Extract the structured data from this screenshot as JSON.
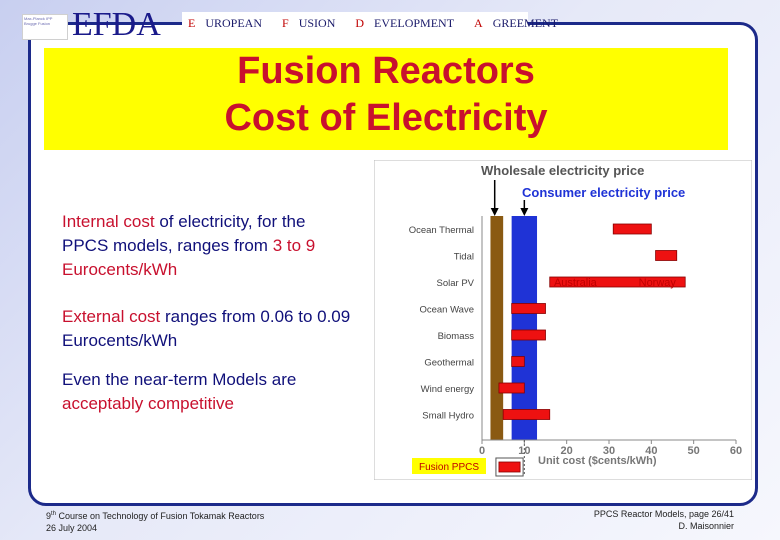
{
  "header": {
    "logo_text": "Max-Planck IPP Brugge Fusion",
    "org_name": "EFDA",
    "agreement_words": [
      {
        "first": "E",
        "rest": "UROPEAN"
      },
      {
        "first": "F",
        "rest": "USION"
      },
      {
        "first": "D",
        "rest": "EVELOPMENT"
      },
      {
        "first": "A",
        "rest": "GREEMENT"
      }
    ]
  },
  "title": {
    "line1": "Fusion Reactors",
    "line2": "Cost of Electricity"
  },
  "bullets": {
    "b1_a": "Internal cost",
    "b1_b": " of electricity, for the PPCS models, ranges from ",
    "b1_c": "3 to 9 Eurocents/kWh",
    "b2_a": "External cost",
    "b2_b": " ranges from 0.06 to 0.09 Eurocents/kWh",
    "b3_a": "Even the near-term Models are ",
    "b3_b": "acceptably competitive"
  },
  "chart_data": {
    "type": "bar",
    "title": "Wholesale electricity price",
    "subtitle": "Consumer electricity price",
    "xlabel": "Unit cost ($cents/kWh)",
    "xlim": [
      0,
      60
    ],
    "x_ticks": [
      "0",
      "10",
      "20",
      "30",
      "40",
      "50",
      "60"
    ],
    "wholesale_range": [
      2,
      5
    ],
    "consumer_range": [
      7,
      13
    ],
    "categories": [
      "Ocean Thermal",
      "Tidal",
      "Solar PV",
      "Ocean Wave",
      "Biomass",
      "Geothermal",
      "Wind energy",
      "Small Hydro",
      "Fusion PPCS"
    ],
    "ranges": [
      [
        31,
        40
      ],
      [
        41,
        46
      ],
      [
        16,
        48
      ],
      [
        7,
        15
      ],
      [
        7,
        15
      ],
      [
        7,
        10
      ],
      [
        4,
        10
      ],
      [
        5,
        16
      ],
      [
        4,
        9
      ]
    ],
    "annotations": [
      {
        "text": "Australia",
        "category": "Solar PV",
        "x": 17
      },
      {
        "text": "Norway",
        "category": "Solar PV",
        "x": 37
      }
    ],
    "colors": {
      "bar": "#ee1111",
      "wholesale": "#8a5a12",
      "consumer": "#1f33d6",
      "label": "#c00000",
      "fusion_bg": "#ffff00"
    }
  },
  "footer": {
    "left_line1_a": "9",
    "left_line1_sup": "th",
    "left_line1_b": " Course on Technology of Fusion Tokamak Reactors",
    "left_line2": "26 July 2004",
    "right_line1": "PPCS Reactor Models, page 26/41",
    "right_line2": "D. Maisonnier"
  }
}
